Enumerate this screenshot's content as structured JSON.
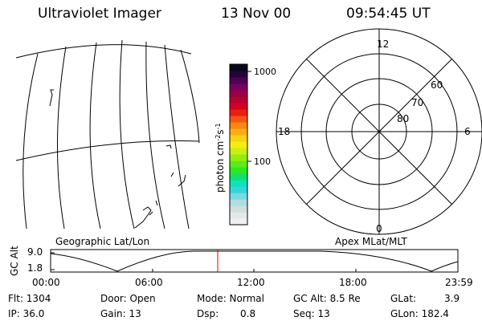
{
  "header": {
    "instrument": "Ultraviolet Imager",
    "date": "13 Nov 00",
    "time": "09:54:45 UT"
  },
  "colorbar": {
    "tick_labels": [
      "1000",
      "100"
    ],
    "unit_label_parts": [
      "photon cm",
      "-2",
      "s",
      "-1"
    ],
    "colors": [
      "#f0f0f0",
      "#e4e8e8",
      "#d0dede",
      "#b4dcdc",
      "#7cd8dc",
      "#38d4dc",
      "#10e0c0",
      "#10e070",
      "#28e828",
      "#58ec18",
      "#90ee10",
      "#c8f010",
      "#f0f010",
      "#f8d410",
      "#f8b010",
      "#f88810",
      "#f05810",
      "#e82010",
      "#d80020",
      "#b80030",
      "#980040",
      "#780060",
      "#500050",
      "#280040",
      "#080818"
    ]
  },
  "panels": {
    "left_caption": "Geographic Lat/Lon",
    "right_caption": "Apex MLat/MLT"
  },
  "polar": {
    "mlt_labels": {
      "top": "12",
      "bottom": "0",
      "left": "18",
      "right": "6"
    },
    "mlat_labels": [
      "60",
      "70",
      "80"
    ]
  },
  "timeline": {
    "ylabel": "GC Alt",
    "ytick_top": "9.0",
    "ytick_bottom": "1.8",
    "xticks": [
      "00:00",
      "06:00",
      "12:00",
      "18:00",
      "23:59"
    ],
    "marker_color": "#e00000"
  },
  "info": {
    "flt": "Flt: 1304",
    "ip": "IP: 36.0",
    "door": "Door: Open",
    "gain": "Gain: 13",
    "mode": "Mode: Normal",
    "dsp_label": "Dsp:",
    "dsp_value": "0.8",
    "gcalt": "GC Alt: 8.5 Re",
    "seq": "Seq: 13",
    "glat_label": "GLat:",
    "glat_value": "3.9",
    "glon": "GLon: 182.4"
  }
}
